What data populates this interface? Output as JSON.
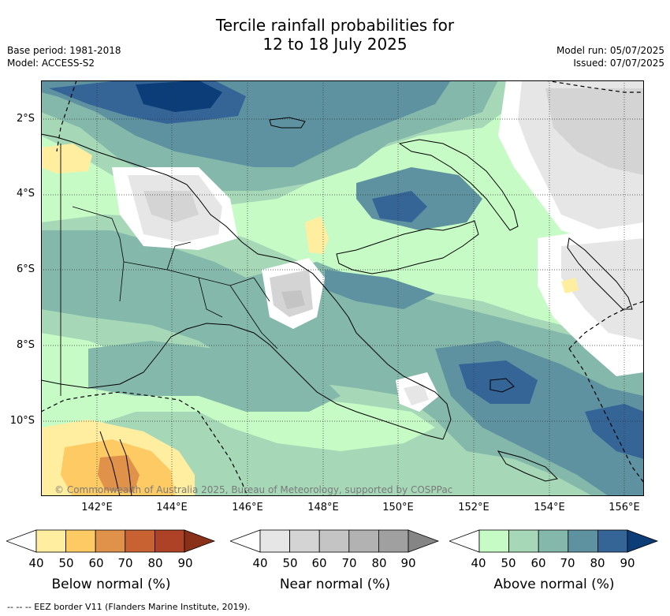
{
  "title": {
    "line1": "Tercile rainfall probabilities for",
    "line2": "12 to 18 July 2025"
  },
  "meta": {
    "base_period": "Base period: 1981-2018",
    "model": "Model: ACCESS-S2",
    "model_run": "Model run: 05/07/2025",
    "issued": "Issued: 07/07/2025"
  },
  "map": {
    "lat_labels": [
      "2°S",
      "4°S",
      "6°S",
      "8°S",
      "10°S"
    ],
    "lon_labels": [
      "142°E",
      "144°E",
      "146°E",
      "148°E",
      "150°E",
      "152°E",
      "154°E",
      "156°E"
    ],
    "copyright": "© Commonwealth of Australia 2025, Bureau of Meteorology, supported by COSPPac"
  },
  "colorbars": [
    {
      "title": "Below normal (%)",
      "ticks": [
        "40",
        "50",
        "60",
        "70",
        "80",
        "90"
      ],
      "colors": [
        "#ffeea0",
        "#fdca63",
        "#e0924a",
        "#c86232",
        "#ad4226",
        "#8a3018"
      ]
    },
    {
      "title": "Near normal (%)",
      "ticks": [
        "40",
        "50",
        "60",
        "70",
        "80",
        "90"
      ],
      "colors": [
        "#e6e6e6",
        "#d4d4d4",
        "#c4c4c4",
        "#b2b2b2",
        "#a0a0a0",
        "#858585"
      ]
    },
    {
      "title": "Above normal (%)",
      "ticks": [
        "40",
        "50",
        "60",
        "70",
        "80",
        "90"
      ],
      "colors": [
        "#c6fbc6",
        "#a6d8b8",
        "#84b8aa",
        "#5f92a0",
        "#356497",
        "#0d3d78"
      ]
    }
  ],
  "footnote": "--  --  -- EEZ border V11 (Flanders Marine Institute, 2019)."
}
